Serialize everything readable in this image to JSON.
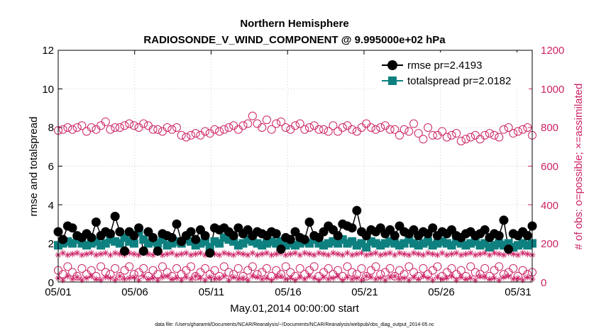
{
  "chart_data": {
    "type": "line",
    "title": "Northern Hemisphere",
    "subtitle": "RADIOSONDE_V_WIND_COMPONENT @ 9.995000e+02 hPa",
    "xlabel": "May.01,2014 00:00:00 start",
    "ylabel": "rmse and totalspread",
    "y2label": "# of obs: o=possible; ×=assimilated",
    "footer": "data file: /Users/gharamti/Documents/NCAR/Reanalysis/~/Documents/NCAR/Reanalysis/webpub/obs_diag_output_2014-05.nc",
    "xlim": [
      0,
      31
    ],
    "ylim": [
      0,
      12
    ],
    "y2lim": [
      0,
      1200
    ],
    "x_tick_labels": [
      "05/01",
      "05/06",
      "05/11",
      "05/16",
      "05/21",
      "05/26",
      "05/31"
    ],
    "y_tick_labels": [
      "0",
      "2",
      "4",
      "6",
      "8",
      "10",
      "12"
    ],
    "y2_tick_labels": [
      "0",
      "200",
      "400",
      "600",
      "800",
      "1000",
      "1200"
    ],
    "legend": {
      "placement": "top-right",
      "entries": [
        "rmse pr=2.4193",
        "totalspread pr=2.0182"
      ]
    },
    "colors": {
      "rmse": "#000000",
      "totalspread": "#0f8080",
      "obs": "#cc2266"
    },
    "series": [
      {
        "name": "rmse pr=2.4193",
        "axis": "left",
        "marker": "filled-circle",
        "values": [
          2.6,
          2.2,
          2.9,
          2.8,
          2.4,
          2.3,
          2.5,
          2.3,
          3.1,
          2.4,
          2.6,
          2.5,
          3.4,
          2.6,
          1.6,
          2.6,
          2.4,
          2.8,
          1.6,
          2.6,
          2.3,
          1.6,
          2.5,
          2.4,
          2.3,
          3.0,
          2.1,
          2.4,
          2.6,
          2.2,
          2.7,
          2.4,
          1.5,
          2.8,
          2.7,
          2.8,
          2.6,
          2.4,
          2.8,
          2.5,
          2.7,
          2.4,
          2.6,
          2.5,
          2.4,
          2.6,
          2.5,
          1.7,
          2.3,
          2.2,
          2.6,
          2.3,
          2.2,
          3.1,
          2.4,
          2.3,
          2.6,
          2.9,
          2.7,
          2.4,
          3.0,
          2.9,
          2.8,
          3.7,
          2.6,
          2.4,
          2.7,
          2.6,
          2.8,
          2.5,
          2.7,
          2.4,
          2.9,
          2.6,
          2.5,
          2.7,
          2.4,
          2.6,
          2.5,
          2.8,
          2.4,
          2.6,
          2.5,
          2.7,
          2.4,
          2.3,
          2.5,
          2.6,
          2.4,
          2.5,
          2.7,
          2.3,
          2.5,
          2.4,
          3.2,
          1.7,
          2.5,
          2.4,
          2.6,
          2.4,
          2.9
        ]
      },
      {
        "name": "totalspread pr=2.0182",
        "axis": "left",
        "marker": "filled-square",
        "values": [
          1.9,
          2.0,
          2.1,
          2.0,
          2.2,
          2.0,
          1.9,
          2.0,
          2.1,
          1.9,
          2.0,
          2.2,
          2.1,
          2.0,
          2.3,
          2.1,
          2.0,
          2.6,
          2.2,
          2.0,
          2.1,
          2.0,
          2.2,
          1.9,
          2.0,
          2.1,
          2.0,
          2.2,
          2.1,
          1.9,
          2.0,
          2.1,
          1.8,
          2.1,
          2.0,
          2.3,
          2.2,
          2.1,
          1.9,
          2.0,
          2.2,
          2.1,
          2.0,
          1.9,
          2.0,
          2.1,
          2.0,
          2.1,
          1.9,
          2.0,
          1.9,
          2.0,
          2.1,
          2.0,
          2.2,
          2.0,
          1.9,
          2.0,
          2.1,
          2.0,
          2.2,
          2.0,
          2.1,
          1.9,
          2.0,
          1.8,
          2.1,
          2.0,
          1.9,
          2.0,
          2.1,
          2.0,
          1.9,
          2.0,
          2.2,
          2.0,
          1.9,
          2.0,
          2.1,
          1.9,
          2.0,
          2.1,
          2.0,
          1.9,
          2.1,
          2.0,
          1.9,
          2.0,
          2.1,
          1.9,
          2.0,
          1.8,
          1.9,
          2.0,
          1.9,
          2.0,
          1.8,
          1.9,
          2.0,
          1.9,
          2.0
        ]
      },
      {
        "name": "obs possible (upper)",
        "axis": "right",
        "marker": "open-circle",
        "values": [
          785,
          790,
          800,
          790,
          800,
          810,
          780,
          800,
          790,
          810,
          830,
          790,
          800,
          800,
          810,
          820,
          810,
          800,
          820,
          810,
          790,
          790,
          780,
          800,
          790,
          800,
          760,
          750,
          760,
          770,
          760,
          780,
          770,
          790,
          780,
          790,
          800,
          810,
          790,
          810,
          820,
          860,
          820,
          800,
          840,
          790,
          820,
          830,
          800,
          790,
          810,
          820,
          790,
          800,
          810,
          790,
          790,
          780,
          810,
          780,
          800,
          810,
          790,
          780,
          800,
          820,
          800,
          790,
          800,
          810,
          790,
          790,
          760,
          790,
          780,
          820,
          770,
          740,
          800,
          760,
          760,
          780,
          750,
          760,
          770,
          730,
          740,
          750,
          760,
          740,
          760,
          770,
          760,
          750,
          790,
          800,
          770,
          780,
          790,
          800,
          760
        ]
      },
      {
        "name": "obs assimilated (upper)",
        "axis": "right",
        "marker": "asterisk",
        "values": [
          140,
          150,
          140,
          145,
          150,
          140,
          145,
          150,
          140,
          145,
          150,
          140,
          150,
          145,
          140,
          150,
          145,
          140,
          150,
          145,
          140,
          150,
          140,
          145,
          150,
          140,
          145,
          150,
          140,
          145,
          150,
          140,
          150,
          145,
          140,
          150,
          145,
          140,
          150,
          145,
          140,
          150,
          140,
          145,
          150,
          140,
          145,
          150,
          140,
          145,
          150,
          140,
          150,
          145,
          140,
          150,
          145,
          140,
          150,
          145,
          140,
          150,
          140,
          145,
          150,
          140,
          145,
          150,
          140,
          145,
          150,
          140,
          150,
          145,
          140,
          150,
          145,
          140,
          150,
          145,
          140,
          150,
          140,
          145,
          150,
          140,
          145,
          150,
          140,
          145,
          150,
          140,
          150,
          145,
          140,
          150,
          145,
          140,
          150,
          145,
          140
        ]
      },
      {
        "name": "obs possible (lower)",
        "axis": "right",
        "marker": "open-circle",
        "values": [
          60,
          40,
          80,
          50,
          30,
          70,
          40,
          60,
          30,
          80,
          50,
          40,
          70,
          30,
          60,
          80,
          40,
          50,
          70,
          30,
          60,
          40,
          80,
          50,
          30,
          70,
          40,
          60,
          80,
          30,
          50,
          70,
          40,
          60,
          30,
          80,
          50,
          40,
          70,
          30,
          60,
          80,
          40,
          50,
          70,
          30,
          60,
          40,
          80,
          50,
          30,
          70,
          40,
          60,
          80,
          30,
          50,
          70,
          40,
          60,
          30,
          80,
          50,
          40,
          70,
          30,
          60,
          80,
          40,
          50,
          70,
          30,
          60,
          40,
          80,
          50,
          30,
          70,
          40,
          60,
          80,
          30,
          50,
          70,
          40,
          60,
          30,
          80,
          50,
          40,
          70,
          30,
          60,
          80,
          40,
          50,
          70,
          30,
          60,
          40,
          50
        ]
      },
      {
        "name": "obs assimilated (lower)",
        "axis": "right",
        "marker": "asterisk",
        "values": [
          20,
          10,
          30,
          15,
          25,
          10,
          20,
          30,
          15,
          10,
          25,
          20,
          10,
          30,
          15,
          20,
          25,
          10,
          30,
          15,
          20,
          10,
          25,
          30,
          15,
          20,
          10,
          25,
          15,
          30,
          20,
          10,
          25,
          15,
          20,
          30,
          10,
          25,
          15,
          20,
          10,
          30,
          25,
          15,
          20,
          10,
          25,
          30,
          15,
          20,
          10,
          25,
          15,
          30,
          20,
          10,
          25,
          15,
          20,
          30,
          10,
          25,
          15,
          20,
          10,
          30,
          25,
          15,
          20,
          10,
          25,
          30,
          15,
          20,
          10,
          25,
          15,
          30,
          20,
          10,
          25,
          15,
          20,
          30,
          10,
          25,
          15,
          20,
          10,
          30,
          25,
          15,
          20,
          10,
          25,
          30,
          15,
          20,
          10,
          25,
          15
        ]
      }
    ]
  }
}
